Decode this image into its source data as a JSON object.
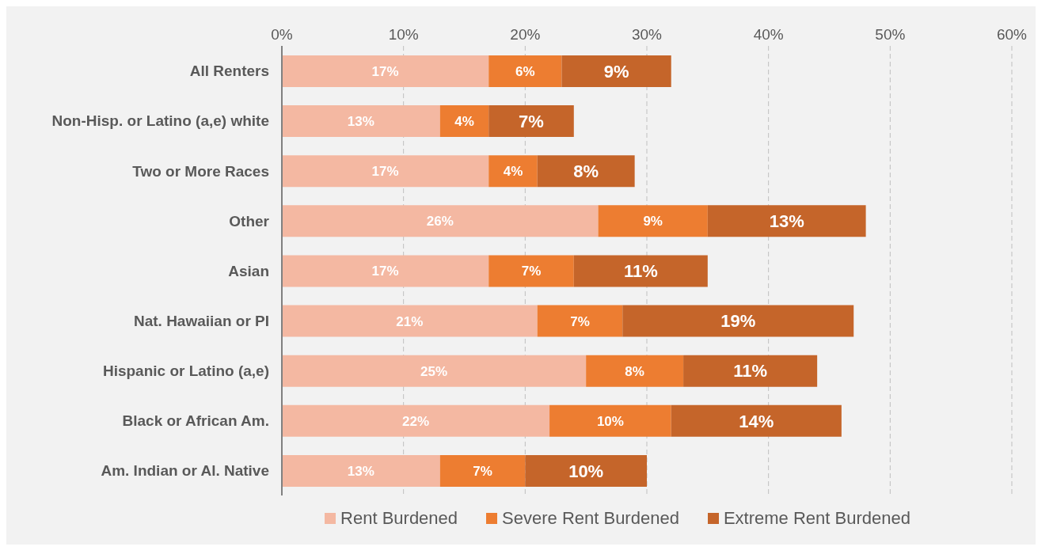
{
  "chart_data": {
    "type": "bar",
    "orientation": "horizontal",
    "stacked": true,
    "categories": [
      "All Renters",
      "Non-Hisp. or Latino (a,e) white",
      "Two or More Races",
      "Other",
      "Asian",
      "Nat. Hawaiian or PI",
      "Hispanic or Latino (a,e)",
      "Black or African Am.",
      "Am. Indian or Al. Native"
    ],
    "series": [
      {
        "name": "Rent Burdened",
        "color": "#f4b8a2",
        "values": [
          17,
          13,
          17,
          26,
          17,
          21,
          25,
          22,
          13
        ],
        "value_labels": [
          "17%",
          "13%",
          "17%",
          "26%",
          "17%",
          "21%",
          "25%",
          "22%",
          "13%"
        ]
      },
      {
        "name": "Severe Rent Burdened",
        "color": "#ed7d31",
        "values": [
          6,
          4,
          4,
          9,
          7,
          7,
          8,
          10,
          7
        ],
        "value_labels": [
          "6%",
          "4%",
          "4%",
          "9%",
          "7%",
          "7%",
          "8%",
          "10%",
          "7%"
        ]
      },
      {
        "name": "Extreme Rent Burdened",
        "color": "#c5652a",
        "values": [
          9,
          7,
          8,
          13,
          11,
          19,
          11,
          14,
          10
        ],
        "value_labels": [
          "9%",
          "7%",
          "8%",
          "13%",
          "11%",
          "19%",
          "11%",
          "14%",
          "10%"
        ]
      }
    ],
    "xlim": [
      0,
      60
    ],
    "xticks": [
      {
        "value": 0,
        "label": "0%"
      },
      {
        "value": 10,
        "label": "10%"
      },
      {
        "value": 20,
        "label": "20%"
      },
      {
        "value": 30,
        "label": "30%"
      },
      {
        "value": 40,
        "label": "40%"
      },
      {
        "value": 50,
        "label": "50%"
      },
      {
        "value": 60,
        "label": "60%"
      }
    ],
    "grid": "x",
    "legend": "bottom"
  }
}
